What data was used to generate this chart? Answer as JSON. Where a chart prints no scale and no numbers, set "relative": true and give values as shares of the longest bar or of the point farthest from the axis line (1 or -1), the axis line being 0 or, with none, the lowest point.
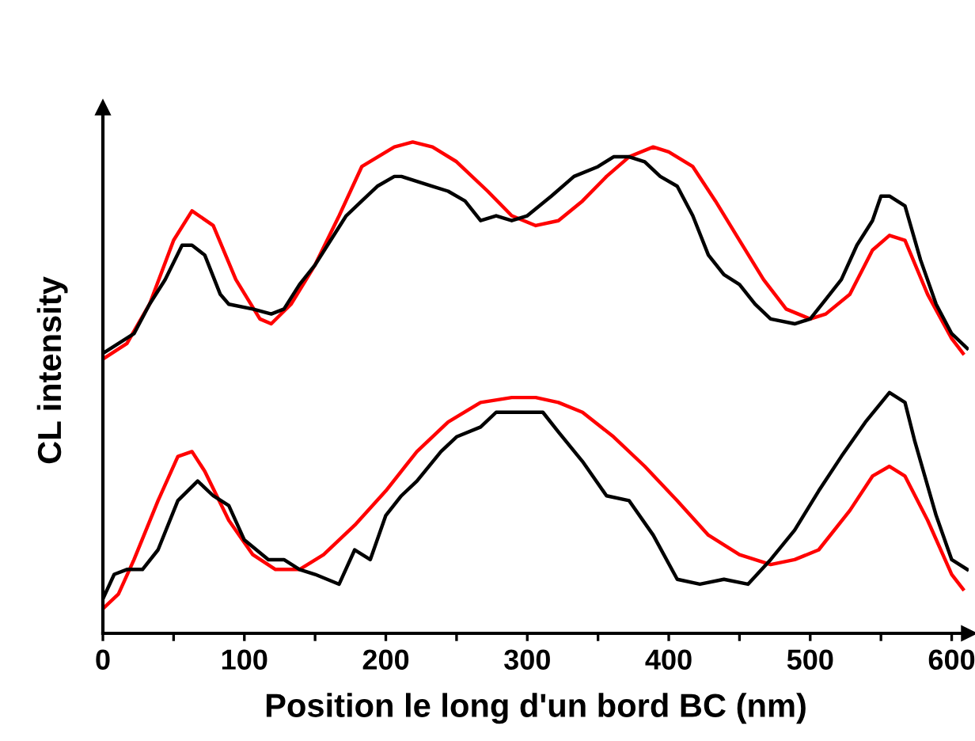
{
  "chart_data": {
    "type": "line",
    "relative": true,
    "xlabel": "Position le long d'un bord BC (nm)",
    "ylabel": "CL intensity",
    "xlim": [
      0,
      612
    ],
    "xticks": [
      0,
      {
        "value": 50,
        "label": null
      },
      100,
      {
        "value": 150,
        "label": null
      },
      200,
      {
        "value": 250,
        "label": null
      },
      300,
      {
        "value": 350,
        "label": null
      },
      400,
      {
        "value": 450,
        "label": null
      },
      500,
      {
        "value": 550,
        "label": null
      },
      600
    ],
    "tick_labels": "x",
    "grid": false,
    "legend": false,
    "marker": "none",
    "line_style": "solid",
    "series": [
      {
        "color": "#ff0000",
        "x": [
          1,
          17,
          33,
          50,
          63,
          78,
          94,
          111,
          119,
          133,
          150,
          167,
          183,
          206,
          219,
          233,
          250,
          272,
          289,
          306,
          322,
          339,
          356,
          372,
          389,
          400,
          417,
          433,
          450,
          467,
          483,
          500,
          511,
          528,
          544,
          556,
          567,
          583,
          600,
          608
        ],
        "values": [
          0.56,
          0.59,
          0.67,
          0.8,
          0.86,
          0.83,
          0.72,
          0.64,
          0.63,
          0.67,
          0.75,
          0.85,
          0.95,
          0.99,
          1.0,
          0.99,
          0.96,
          0.9,
          0.85,
          0.83,
          0.84,
          0.88,
          0.93,
          0.97,
          0.99,
          0.98,
          0.95,
          0.88,
          0.8,
          0.72,
          0.66,
          0.64,
          0.65,
          0.69,
          0.78,
          0.81,
          0.8,
          0.69,
          0.6,
          0.57
        ]
      },
      {
        "color": "#000000",
        "x": [
          0,
          11,
          22,
          33,
          44,
          56,
          63,
          72,
          83,
          89,
          106,
          119,
          128,
          139,
          150,
          161,
          172,
          183,
          194,
          206,
          211,
          222,
          233,
          244,
          256,
          267,
          278,
          289,
          300,
          317,
          333,
          350,
          361,
          372,
          383,
          394,
          406,
          417,
          428,
          439,
          450,
          461,
          472,
          489,
          500,
          511,
          522,
          533,
          544,
          550,
          556,
          567,
          578,
          589,
          600,
          611
        ],
        "values": [
          0.57,
          0.59,
          0.61,
          0.67,
          0.72,
          0.79,
          0.79,
          0.77,
          0.69,
          0.67,
          0.66,
          0.65,
          0.66,
          0.71,
          0.75,
          0.8,
          0.85,
          0.88,
          0.91,
          0.93,
          0.93,
          0.92,
          0.91,
          0.9,
          0.88,
          0.84,
          0.85,
          0.84,
          0.85,
          0.89,
          0.93,
          0.95,
          0.97,
          0.97,
          0.96,
          0.93,
          0.91,
          0.85,
          0.77,
          0.73,
          0.71,
          0.67,
          0.64,
          0.63,
          0.64,
          0.68,
          0.72,
          0.79,
          0.84,
          0.89,
          0.89,
          0.87,
          0.76,
          0.67,
          0.61,
          0.58
        ]
      },
      {
        "color": "#ff0000",
        "x": [
          0,
          11,
          22,
          39,
          53,
          63,
          72,
          89,
          106,
          122,
          139,
          156,
          178,
          200,
          222,
          244,
          267,
          289,
          306,
          322,
          339,
          361,
          383,
          406,
          428,
          450,
          472,
          489,
          506,
          528,
          544,
          556,
          567,
          583,
          600,
          608
        ],
        "values": [
          0.05,
          0.08,
          0.15,
          0.27,
          0.36,
          0.37,
          0.33,
          0.23,
          0.16,
          0.13,
          0.13,
          0.16,
          0.22,
          0.29,
          0.37,
          0.43,
          0.47,
          0.48,
          0.48,
          0.47,
          0.45,
          0.4,
          0.34,
          0.27,
          0.2,
          0.16,
          0.14,
          0.15,
          0.17,
          0.25,
          0.32,
          0.34,
          0.32,
          0.23,
          0.12,
          0.09
        ]
      },
      {
        "color": "#000000",
        "x": [
          0,
          8,
          17,
          28,
          39,
          53,
          67,
          78,
          89,
          100,
          117,
          128,
          139,
          150,
          167,
          178,
          189,
          200,
          211,
          222,
          239,
          250,
          267,
          278,
          289,
          300,
          311,
          322,
          339,
          356,
          372,
          389,
          406,
          422,
          439,
          456,
          472,
          489,
          506,
          522,
          539,
          556,
          567,
          574,
          589,
          600,
          611
        ],
        "values": [
          0.07,
          0.12,
          0.13,
          0.13,
          0.17,
          0.27,
          0.31,
          0.28,
          0.26,
          0.19,
          0.15,
          0.15,
          0.13,
          0.12,
          0.1,
          0.17,
          0.15,
          0.24,
          0.28,
          0.31,
          0.37,
          0.4,
          0.42,
          0.45,
          0.45,
          0.45,
          0.45,
          0.41,
          0.35,
          0.28,
          0.27,
          0.2,
          0.11,
          0.1,
          0.11,
          0.1,
          0.15,
          0.21,
          0.29,
          0.36,
          0.43,
          0.49,
          0.47,
          0.39,
          0.24,
          0.15,
          0.13
        ]
      }
    ]
  }
}
